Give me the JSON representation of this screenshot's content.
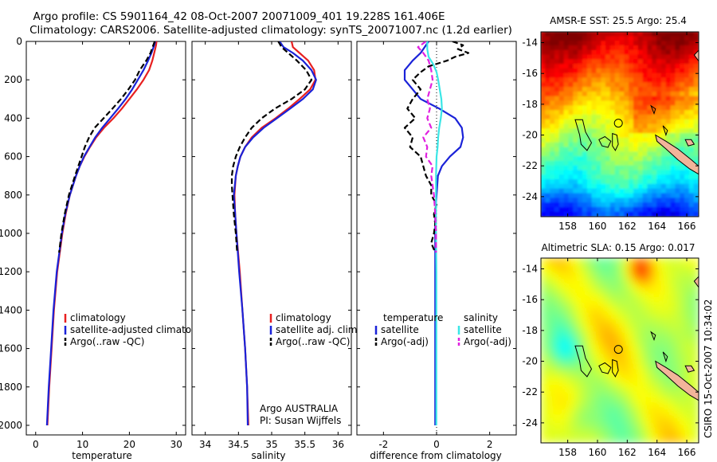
{
  "title_line1": "Argo profile: CS 5901164_42 08-Oct-2007 20071009_401 19.228S 161.406E",
  "title_line2": "Climatology: CARS2006. Satellite-adjusted climatology: synTS_20071007.nc (1.2d earlier)",
  "credit": "CSIRO 15-Oct-2007 10:34:02",
  "colors": {
    "climatology": "#e82020",
    "satellite": "#1a22d8",
    "argo": "#000000",
    "salinity_satellite": "#3ae6e6",
    "salinity_argo": "#e020e0",
    "coast": "#000000",
    "land": "#f2b49a"
  },
  "depth_ticks": [
    "0",
    "200",
    "400",
    "600",
    "800",
    "1000",
    "1200",
    "1400",
    "1600",
    "1800",
    "2000"
  ],
  "chart_data": [
    {
      "type": "line",
      "panel": "temperature",
      "xlabel": "temperature",
      "xlim": [
        -2,
        32
      ],
      "ylim": [
        2050,
        0
      ],
      "x_ticks": [
        "0",
        "10",
        "20",
        "30"
      ],
      "y_ticks": [
        "0",
        "200",
        "400",
        "600",
        "800",
        "1000",
        "1200",
        "1400",
        "1600",
        "1800",
        "2000"
      ],
      "legend": [
        "climatology",
        "satellite-adjusted climatology",
        "Argo(..raw -QC)"
      ],
      "series": [
        {
          "name": "climatology",
          "color": "#e82020",
          "dash": "solid",
          "depth": [
            0,
            20,
            60,
            100,
            150,
            200,
            250,
            300,
            350,
            400,
            450,
            500,
            550,
            600,
            650,
            700,
            800,
            900,
            1000,
            1200,
            1400,
            1600,
            1800,
            2000
          ],
          "value": [
            25.8,
            25.7,
            25.3,
            24.9,
            24.2,
            23.0,
            21.6,
            20.0,
            18.4,
            16.6,
            14.6,
            12.9,
            11.6,
            10.4,
            9.4,
            8.6,
            7.3,
            6.4,
            5.7,
            4.6,
            3.9,
            3.4,
            2.9,
            2.5
          ]
        },
        {
          "name": "satellite-adjusted climatology",
          "color": "#1a22d8",
          "dash": "solid",
          "depth": [
            0,
            20,
            60,
            100,
            150,
            200,
            250,
            300,
            350,
            400,
            450,
            500,
            550,
            600,
            650,
            700,
            800,
            900,
            1000,
            1200,
            1400,
            1600,
            1800,
            2000
          ],
          "value": [
            25.5,
            25.3,
            24.7,
            24.0,
            23.0,
            21.8,
            20.6,
            19.2,
            17.6,
            15.9,
            14.2,
            12.7,
            11.5,
            10.3,
            9.4,
            8.6,
            7.3,
            6.3,
            5.6,
            4.5,
            3.8,
            3.3,
            2.8,
            2.4
          ]
        },
        {
          "name": "Argo(..raw -QC)",
          "color": "#000000",
          "dash": "dashed",
          "depth": [
            0,
            20,
            60,
            100,
            150,
            200,
            250,
            300,
            350,
            400,
            450,
            500,
            550,
            600,
            650,
            700,
            800,
            900,
            1000,
            1100
          ],
          "value": [
            25.4,
            25.1,
            24.5,
            23.6,
            22.2,
            21.2,
            19.8,
            18.2,
            16.4,
            14.5,
            12.6,
            11.4,
            10.5,
            9.8,
            9.1,
            8.4,
            7.1,
            6.2,
            5.5,
            5.0
          ]
        }
      ]
    },
    {
      "type": "line",
      "panel": "salinity",
      "xlabel": "salinity",
      "xlim": [
        33.8,
        36.2
      ],
      "ylim": [
        2050,
        0
      ],
      "x_ticks": [
        "34",
        "34.5",
        "35",
        "35.5",
        "36"
      ],
      "legend": [
        "climatology",
        "satellite adj. clim.",
        "Argo(..raw -QC)"
      ],
      "annotation": [
        "Argo AUSTRALIA",
        "PI: Susan Wijffels"
      ],
      "series": [
        {
          "name": "climatology",
          "color": "#e82020",
          "dash": "solid",
          "depth": [
            0,
            30,
            60,
            100,
            150,
            200,
            250,
            300,
            350,
            400,
            450,
            500,
            550,
            600,
            650,
            700,
            800,
            900,
            1000,
            1200,
            1400,
            1600,
            1800,
            2000
          ],
          "value": [
            35.3,
            35.32,
            35.42,
            35.55,
            35.64,
            35.66,
            35.58,
            35.42,
            35.25,
            35.06,
            34.85,
            34.7,
            34.6,
            34.53,
            34.49,
            34.46,
            34.44,
            34.45,
            34.47,
            34.52,
            34.56,
            34.6,
            34.63,
            34.65
          ]
        },
        {
          "name": "satellite adj. clim.",
          "color": "#1a22d8",
          "dash": "solid",
          "depth": [
            0,
            30,
            60,
            100,
            150,
            200,
            250,
            300,
            350,
            400,
            450,
            500,
            550,
            600,
            650,
            700,
            800,
            900,
            1000,
            1200,
            1400,
            1600,
            1800,
            2000
          ],
          "value": [
            35.12,
            35.18,
            35.32,
            35.47,
            35.6,
            35.67,
            35.62,
            35.47,
            35.28,
            35.08,
            34.88,
            34.72,
            34.6,
            34.53,
            34.49,
            34.46,
            34.43,
            34.45,
            34.47,
            34.51,
            34.56,
            34.6,
            34.63,
            34.64
          ]
        },
        {
          "name": "Argo(..raw -QC)",
          "color": "#000000",
          "dash": "dashed",
          "depth": [
            0,
            30,
            60,
            100,
            150,
            200,
            250,
            300,
            350,
            400,
            450,
            500,
            550,
            600,
            650,
            700,
            750,
            800,
            900,
            1000,
            1100
          ],
          "value": [
            35.1,
            35.15,
            35.25,
            35.38,
            35.52,
            35.6,
            35.5,
            35.3,
            35.05,
            34.85,
            34.7,
            34.6,
            34.52,
            34.46,
            34.42,
            34.4,
            34.4,
            34.41,
            34.43,
            34.46,
            34.48
          ]
        }
      ]
    },
    {
      "type": "line",
      "panel": "difference",
      "xlabel": "difference from climatology",
      "xlim": [
        -3,
        3
      ],
      "ylim": [
        2050,
        0
      ],
      "x_ticks": [
        "-2",
        "0",
        "2"
      ],
      "legend_temperature_title": "temperature",
      "legend_salinity_title": "salinity",
      "legend_temperature": [
        "satellite",
        "Argo(-adj)"
      ],
      "legend_salinity": [
        "satellite",
        "Argo(-adj)"
      ],
      "series": [
        {
          "name": "temperature satellite",
          "color": "#1a22d8",
          "dash": "solid",
          "depth": [
            0,
            20,
            60,
            100,
            150,
            200,
            250,
            300,
            350,
            400,
            450,
            500,
            550,
            600,
            650,
            700,
            800,
            900,
            1000,
            1200,
            1400,
            1600,
            1800,
            2000
          ],
          "value": [
            -0.3,
            -0.4,
            -0.6,
            -0.9,
            -1.2,
            -1.2,
            -0.9,
            -0.6,
            0.1,
            0.7,
            0.95,
            1.0,
            0.9,
            0.5,
            0.2,
            0.05,
            0.0,
            -0.05,
            -0.05,
            -0.05,
            -0.05,
            -0.05,
            -0.05,
            -0.05
          ]
        },
        {
          "name": "temperature Argo(-adj)",
          "color": "#000000",
          "dash": "dashed",
          "depth": [
            0,
            20,
            40,
            60,
            80,
            100,
            130,
            160,
            200,
            250,
            300,
            350,
            400,
            450,
            500,
            550,
            600,
            650,
            700,
            750,
            800,
            850,
            900,
            950,
            1000,
            1050,
            1100
          ],
          "value": [
            0.6,
            1.0,
            0.8,
            1.2,
            0.7,
            0.4,
            -0.3,
            -0.6,
            -0.9,
            -0.6,
            -0.9,
            -1.1,
            -0.8,
            -1.2,
            -0.9,
            -1.0,
            -0.6,
            -0.5,
            -0.4,
            -0.2,
            -0.2,
            0.0,
            -0.1,
            -0.05,
            -0.1,
            -0.2,
            -0.05
          ]
        },
        {
          "name": "salinity satellite",
          "color": "#3ae6e6",
          "dash": "solid",
          "depth": [
            0,
            40,
            80,
            120,
            160,
            200,
            250,
            300,
            350,
            400,
            450,
            500,
            550,
            600,
            700,
            800,
            1000,
            1200,
            1400,
            1600,
            1800,
            2000
          ],
          "value": [
            -0.35,
            -0.35,
            -0.3,
            -0.12,
            0.0,
            0.06,
            0.12,
            0.18,
            0.2,
            0.16,
            0.1,
            0.06,
            0.04,
            0.0,
            -0.02,
            -0.02,
            -0.02,
            -0.01,
            -0.01,
            -0.01,
            -0.01,
            -0.01
          ]
        },
        {
          "name": "salinity Argo(-adj)",
          "color": "#e020e0",
          "dash": "dashed",
          "depth": [
            0,
            30,
            60,
            100,
            150,
            200,
            250,
            300,
            350,
            400,
            450,
            500,
            550,
            600,
            650,
            700,
            800,
            900,
            1000,
            1100
          ],
          "value": [
            -0.4,
            -0.7,
            -0.5,
            -0.3,
            -0.2,
            -0.15,
            -0.25,
            -0.35,
            -0.25,
            -0.35,
            -0.2,
            -0.5,
            -0.35,
            -0.4,
            -0.15,
            -0.2,
            -0.1,
            -0.05,
            -0.02,
            -0.02
          ]
        }
      ]
    },
    {
      "type": "heatmap",
      "panel": "sst_map",
      "title": "AMSR-E SST: 25.5 Argo: 25.4",
      "x_ticks": [
        "158",
        "160",
        "162",
        "164",
        "166"
      ],
      "y_ticks": [
        "-14",
        "-16",
        "-18",
        "-20",
        "-22",
        "-24"
      ],
      "xlim": [
        156.2,
        166.8
      ],
      "ylim": [
        -25.3,
        -13.3
      ],
      "float_position": {
        "lon": 161.406,
        "lat": -19.228
      }
    },
    {
      "type": "heatmap",
      "panel": "sla_map",
      "title": "Altimetric SLA: 0.15 Argo: 0.017",
      "x_ticks": [
        "158",
        "160",
        "162",
        "164",
        "166"
      ],
      "y_ticks": [
        "-14",
        "-16",
        "-18",
        "-20",
        "-22",
        "-24"
      ],
      "xlim": [
        156.2,
        166.8
      ],
      "ylim": [
        -25.3,
        -13.3
      ],
      "float_position": {
        "lon": 161.406,
        "lat": -19.228
      }
    }
  ]
}
